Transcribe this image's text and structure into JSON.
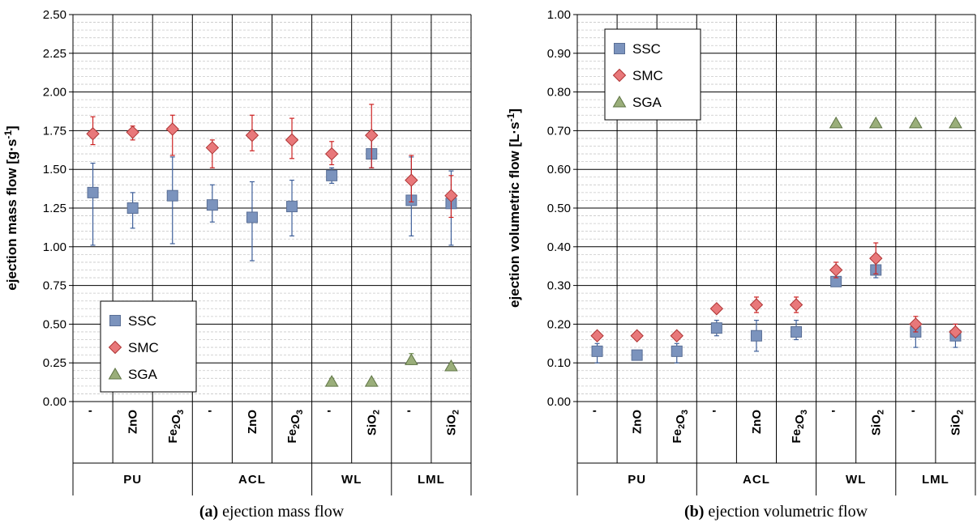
{
  "chart_data": [
    {
      "type": "scatter",
      "ylabel": "ejection mass flow [g·s⁻¹]",
      "ylim": [
        0,
        2.5
      ],
      "yticks": [
        "0.00",
        "0.25",
        "0.50",
        "0.75",
        "1.00",
        "1.25",
        "1.50",
        "1.75",
        "2.00",
        "2.25",
        "2.50"
      ],
      "grid": true,
      "legend_position": "bottom-left",
      "categories": [
        "-",
        "ZnO",
        "Fe2O3",
        "-",
        "ZnO",
        "Fe2O3",
        "-",
        "SiO2",
        "-",
        "SiO2"
      ],
      "groups": [
        {
          "label": "PU",
          "span": [
            0,
            2
          ]
        },
        {
          "label": "ACL",
          "span": [
            3,
            5
          ]
        },
        {
          "label": "WL",
          "span": [
            6,
            7
          ]
        },
        {
          "label": "LML",
          "span": [
            8,
            9
          ]
        }
      ],
      "series": [
        {
          "name": "SSC",
          "marker": "square",
          "color": "#7b93bd",
          "error_color": "#3e5f99",
          "values": [
            1.35,
            1.25,
            1.33,
            1.27,
            1.19,
            1.26,
            1.46,
            1.6,
            1.3,
            1.28
          ],
          "err_low": [
            1.01,
            1.12,
            1.02,
            1.16,
            0.91,
            1.07,
            1.41,
            1.51,
            1.07,
            1.01
          ],
          "err_high": [
            1.54,
            1.35,
            1.58,
            1.4,
            1.42,
            1.43,
            1.51,
            1.7,
            1.58,
            1.49
          ]
        },
        {
          "name": "SMC",
          "marker": "diamond",
          "color": "#e8787a",
          "error_color": "#cc2222",
          "values": [
            1.73,
            1.74,
            1.76,
            1.64,
            1.72,
            1.69,
            1.6,
            1.72,
            1.43,
            1.33
          ],
          "err_low": [
            1.66,
            1.69,
            1.59,
            1.51,
            1.62,
            1.57,
            1.53,
            1.51,
            1.29,
            1.19
          ],
          "err_high": [
            1.84,
            1.78,
            1.85,
            1.69,
            1.85,
            1.83,
            1.68,
            1.92,
            1.59,
            1.46
          ]
        },
        {
          "name": "SGA",
          "marker": "triangle",
          "color": "#9aae7a",
          "error_color": "#6b8a4c",
          "values": [
            null,
            null,
            null,
            null,
            null,
            null,
            0.13,
            0.13,
            0.27,
            0.23
          ],
          "err_low": [
            null,
            null,
            null,
            null,
            null,
            null,
            0.11,
            0.12,
            0.24,
            0.22
          ],
          "err_high": [
            null,
            null,
            null,
            null,
            null,
            null,
            0.15,
            0.14,
            0.31,
            0.24
          ]
        }
      ],
      "caption": {
        "label": "(a)",
        "text": "ejection mass flow"
      }
    },
    {
      "type": "scatter",
      "ylabel": "ejection volumetric flow [L·s⁻¹]",
      "ylim": [
        0,
        1.0
      ],
      "yticks": [
        "0.00",
        "0.10",
        "0.20",
        "0.30",
        "0.40",
        "0.50",
        "0.60",
        "0.70",
        "0.80",
        "0.90",
        "1.00"
      ],
      "grid": true,
      "legend_position": "top-left",
      "categories": [
        "-",
        "ZnO",
        "Fe2O3",
        "-",
        "ZnO",
        "Fe2O3",
        "-",
        "SiO2",
        "-",
        "SiO2"
      ],
      "groups": [
        {
          "label": "PU",
          "span": [
            0,
            2
          ]
        },
        {
          "label": "ACL",
          "span": [
            3,
            5
          ]
        },
        {
          "label": "WL",
          "span": [
            6,
            7
          ]
        },
        {
          "label": "LML",
          "span": [
            8,
            9
          ]
        }
      ],
      "series": [
        {
          "name": "SSC",
          "marker": "square",
          "color": "#7b93bd",
          "error_color": "#3e5f99",
          "values": [
            0.13,
            0.12,
            0.13,
            0.19,
            0.17,
            0.18,
            0.31,
            0.34,
            0.18,
            0.17
          ],
          "err_low": [
            0.1,
            0.11,
            0.1,
            0.17,
            0.13,
            0.16,
            0.3,
            0.32,
            0.14,
            0.14
          ],
          "err_high": [
            0.15,
            0.13,
            0.15,
            0.21,
            0.21,
            0.21,
            0.32,
            0.37,
            0.21,
            0.2
          ]
        },
        {
          "name": "SMC",
          "marker": "diamond",
          "color": "#e8787a",
          "error_color": "#cc2222",
          "values": [
            0.17,
            0.17,
            0.17,
            0.24,
            0.25,
            0.25,
            0.34,
            0.37,
            0.2,
            0.18
          ],
          "err_low": [
            0.16,
            0.16,
            0.16,
            0.23,
            0.23,
            0.23,
            0.32,
            0.33,
            0.18,
            0.17
          ],
          "err_high": [
            0.18,
            0.18,
            0.18,
            0.25,
            0.27,
            0.27,
            0.36,
            0.41,
            0.22,
            0.2
          ]
        },
        {
          "name": "SGA",
          "marker": "triangle",
          "color": "#9aae7a",
          "error_color": "#6b8a4c",
          "values": [
            null,
            null,
            null,
            null,
            null,
            null,
            0.72,
            0.72,
            0.72,
            0.72
          ],
          "err_low": [
            null,
            null,
            null,
            null,
            null,
            null,
            0.71,
            0.71,
            0.71,
            0.71
          ],
          "err_high": [
            null,
            null,
            null,
            null,
            null,
            null,
            0.72,
            0.72,
            0.72,
            0.72
          ]
        }
      ],
      "caption": {
        "label": "(b)",
        "text": "ejection volumetric flow"
      }
    }
  ]
}
